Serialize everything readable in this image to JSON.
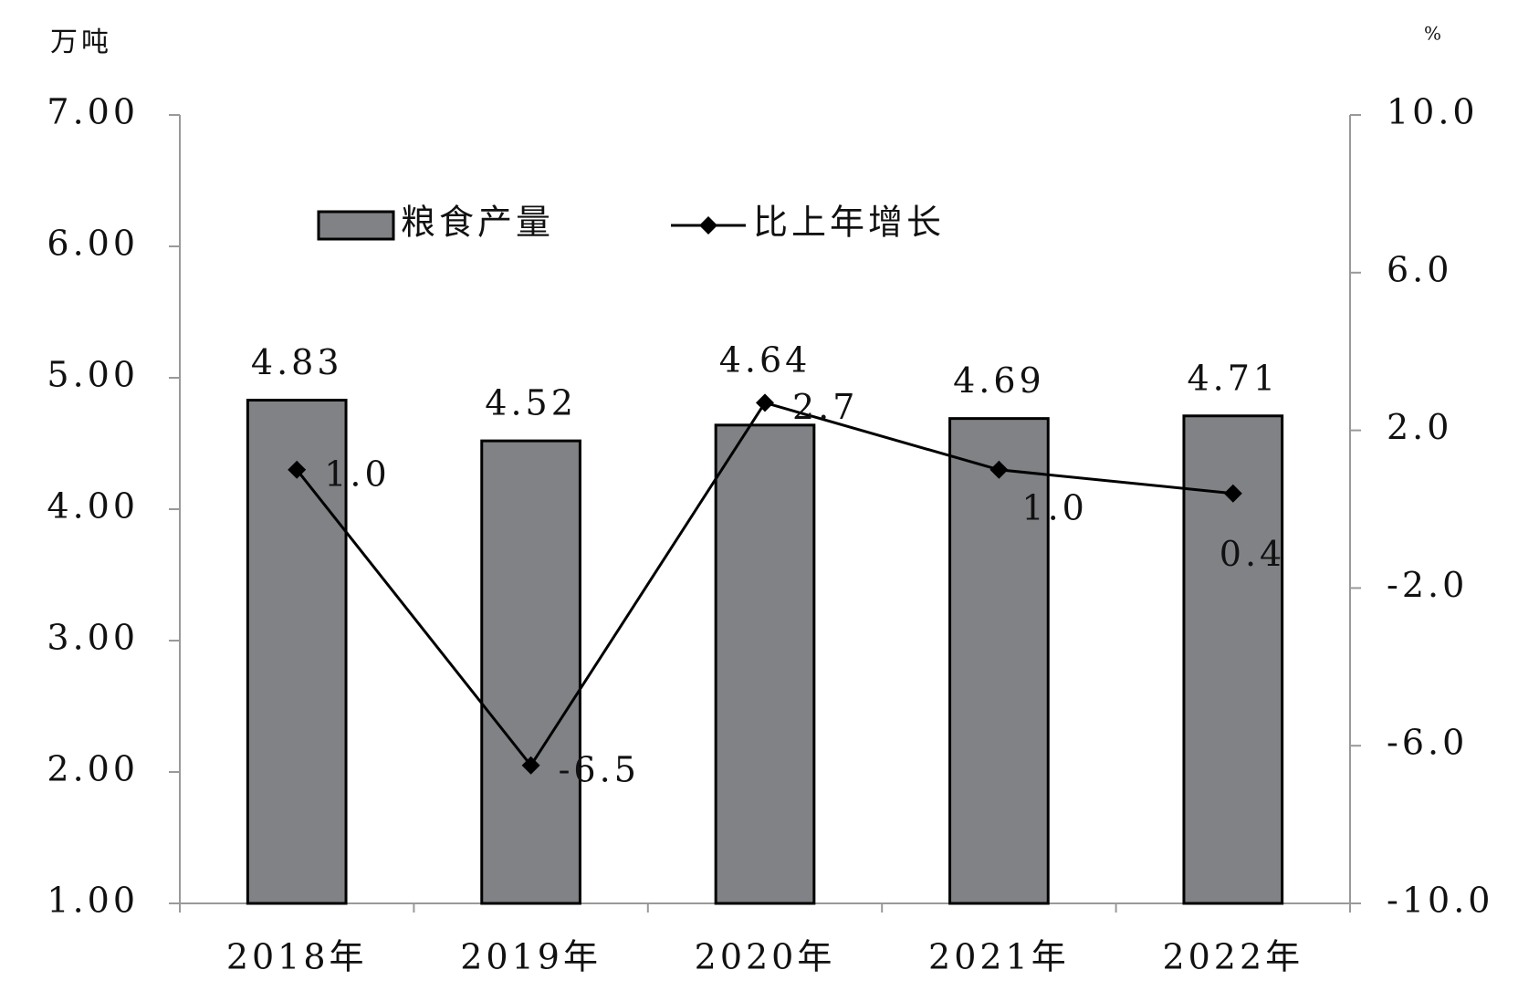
{
  "chart_data": {
    "type": "bar-line",
    "y_axis_label": "万吨",
    "y2_axis_label": "%",
    "categories": [
      "2018年",
      "2019年",
      "2020年",
      "2021年",
      "2022年"
    ],
    "series": [
      {
        "name": "粮食产量",
        "type": "bar",
        "color": "#808285",
        "values": [
          4.83,
          4.52,
          4.64,
          4.69,
          4.71
        ]
      },
      {
        "name": "比上年增长",
        "type": "line",
        "color": "#000000",
        "axis": "y2",
        "values": [
          1.0,
          -6.5,
          2.7,
          1.0,
          0.4
        ],
        "value_labels": [
          "1.0",
          "-6.5",
          "2.7",
          "1.0",
          "0.4"
        ]
      }
    ],
    "ylim": [
      1,
      7
    ],
    "yticks": [
      {
        "value": 1,
        "label": "1.00"
      },
      {
        "value": 2,
        "label": "2.00"
      },
      {
        "value": 3,
        "label": "3.00"
      },
      {
        "value": 4,
        "label": "4.00"
      },
      {
        "value": 5,
        "label": "5.00"
      },
      {
        "value": 6,
        "label": "6.00"
      },
      {
        "value": 7,
        "label": "7.00"
      }
    ],
    "y2lim": [
      -10,
      10
    ],
    "y2ticks": [
      {
        "value": -10,
        "label": "-10.0"
      },
      {
        "value": -6,
        "label": "-6.0"
      },
      {
        "value": -2,
        "label": "-2.0"
      },
      {
        "value": 2,
        "label": "2.0"
      },
      {
        "value": 6,
        "label": "6.0"
      },
      {
        "value": 10,
        "label": "10.0"
      }
    ],
    "legend": "top-left"
  }
}
